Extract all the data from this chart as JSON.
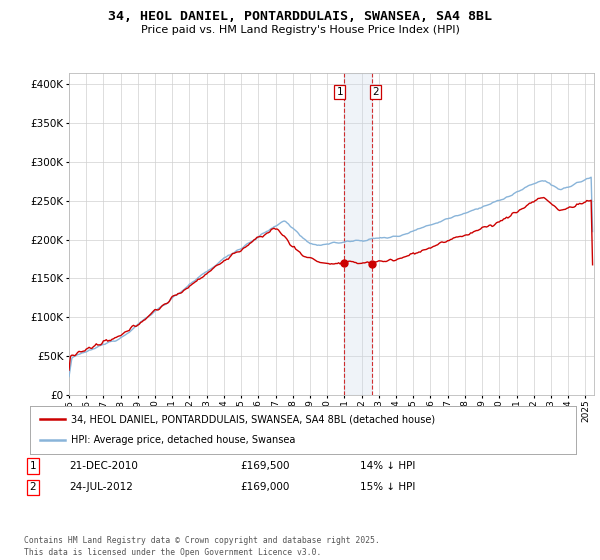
{
  "title_line1": "34, HEOL DANIEL, PONTARDDULAIS, SWANSEA, SA4 8BL",
  "title_line2": "Price paid vs. HM Land Registry's House Price Index (HPI)",
  "ytick_vals": [
    0,
    50000,
    100000,
    150000,
    200000,
    250000,
    300000,
    350000,
    400000
  ],
  "ylim": [
    0,
    415000
  ],
  "hpi_color": "#89b4d9",
  "price_color": "#cc0000",
  "vline_color": "#cc0000",
  "vshade_color": "#ccd9ea",
  "t1_year": 2010.97,
  "t2_year": 2012.58,
  "transaction1_price": 169500,
  "transaction2_price": 169000,
  "transaction1_hpi": 197093,
  "transaction2_hpi": 198824,
  "transaction1_date": "21-DEC-2010",
  "transaction2_date": "24-JUL-2012",
  "transaction1_label": "14% ↓ HPI",
  "transaction2_label": "15% ↓ HPI",
  "legend_line1": "34, HEOL DANIEL, PONTARDDULAIS, SWANSEA, SA4 8BL (detached house)",
  "legend_line2": "HPI: Average price, detached house, Swansea",
  "footnote": "Contains HM Land Registry data © Crown copyright and database right 2025.\nThis data is licensed under the Open Government Licence v3.0.",
  "background_color": "#ffffff",
  "grid_color": "#d0d0d0",
  "xlim_start": 1995,
  "xlim_end": 2025.5
}
